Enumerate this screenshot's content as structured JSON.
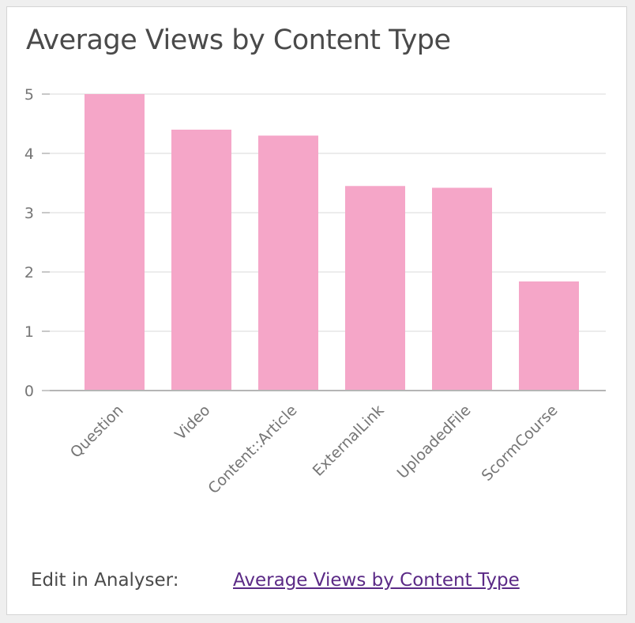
{
  "card": {
    "title": "Average Views by Content Type"
  },
  "footer": {
    "edit_label": "Edit in Analyser:",
    "link_text": "Average Views by Content Type"
  },
  "colors": {
    "bar": "#f5a6c8",
    "gridline": "#e6e6e6",
    "axis": "#b5b5b5",
    "link": "#5b2a86"
  },
  "chart_data": {
    "type": "bar",
    "title": "Average Views by Content Type",
    "xlabel": "",
    "ylabel": "",
    "categories": [
      "Question",
      "Video",
      "Content::Article",
      "ExternalLink",
      "UploadedFile",
      "ScormCourse"
    ],
    "values": [
      5.0,
      4.4,
      4.3,
      3.45,
      3.42,
      1.84
    ],
    "ylim": [
      0,
      5
    ],
    "yticks": [
      "0",
      "1",
      "2",
      "3",
      "4",
      "5"
    ],
    "grid": true,
    "legend": "none"
  }
}
